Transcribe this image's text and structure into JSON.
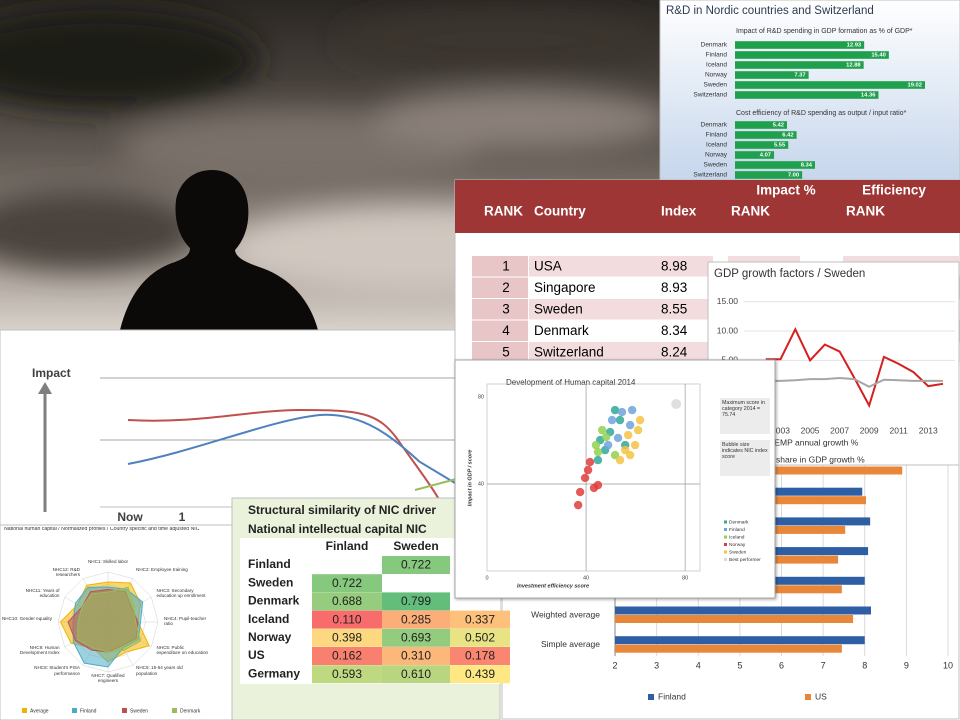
{
  "rd_panel": {
    "title": "R&D in Nordic countries and Switzerland",
    "impact": {
      "subtitle": "Impact of R&D spending in GDP formation as % of GDP*",
      "categories": [
        "Denmark",
        "Finland",
        "Iceland",
        "Norway",
        "Sweden",
        "Switzerland"
      ],
      "values": [
        12.93,
        15.4,
        12.88,
        7.37,
        19.02,
        14.36
      ],
      "value_labels": [
        "12.93",
        "15.40",
        "12.88",
        "7.37",
        "19.02",
        "14.36"
      ],
      "color": "#1fa04c"
    },
    "efficiency": {
      "subtitle": "Cost efficiency of R&D spending as output / input ratio*",
      "categories": [
        "Denmark",
        "Finland",
        "Iceland",
        "Norway",
        "Sweden",
        "Switzerland"
      ],
      "values": [
        5.42,
        6.42,
        5.55,
        4.07,
        8.34,
        7.0
      ],
      "value_labels": [
        "5.42",
        "6.42",
        "5.55",
        "4.07",
        "8.34",
        "7.00"
      ],
      "color": "#1fa04c"
    }
  },
  "impact_chart": {
    "y_label": "Impact",
    "x_labels": [
      "Now",
      "1"
    ]
  },
  "radar": {
    "title": "National human capital / Normalized profiles / Country specific and time adjusted NIC",
    "axes": [
      "NHC1: Skilled labor",
      "NHC2: Employee training",
      "NHC3: Secondary education up enrollment",
      "NHC4: Pupil-teacher ratio",
      "NHC5: Public expenditure on education",
      "NHC6: 15-64 years old population",
      "NHC7: Qualified engineers",
      "NHC8: Student's PISA performance",
      "NHC9: Human Development Index",
      "NHC10: Gender equality",
      "NHC11: Years of education",
      "NHC12: R&D researchers"
    ],
    "series": [
      {
        "name": "Average",
        "color": "#f0b400",
        "values": [
          0.8,
          0.9,
          0.75,
          0.6,
          0.95,
          0.7,
          0.8,
          0.6,
          0.85,
          0.95,
          0.7,
          0.85
        ]
      },
      {
        "name": "Finland",
        "color": "#4bacc6",
        "values": [
          0.7,
          0.75,
          0.8,
          0.65,
          0.7,
          0.6,
          0.9,
          0.95,
          0.8,
          0.7,
          0.75,
          0.8
        ]
      },
      {
        "name": "Sweden",
        "color": "#c0504d",
        "values": [
          0.65,
          0.7,
          0.55,
          0.6,
          0.65,
          0.55,
          0.6,
          0.65,
          0.75,
          0.8,
          0.6,
          0.7
        ]
      },
      {
        "name": "Denmark",
        "color": "#9bbb59",
        "values": [
          0.6,
          0.8,
          0.6,
          0.55,
          0.75,
          0.65,
          0.6,
          0.6,
          0.7,
          0.6,
          0.6,
          0.65
        ]
      }
    ]
  },
  "rank_table": {
    "header_top": [
      "Impact %",
      "Efficiency"
    ],
    "columns": [
      "RANK",
      "Country",
      "Index",
      "RANK",
      "RANK"
    ],
    "rows": [
      [
        1,
        "USA",
        8.98
      ],
      [
        2,
        "Singapore",
        8.93
      ],
      [
        3,
        "Sweden",
        8.55
      ],
      [
        4,
        "Denmark",
        8.34
      ],
      [
        5,
        "Switzerland",
        8.24
      ]
    ]
  },
  "gdp_chart": {
    "title": "GDP growth factors / Sweden",
    "x": [
      2002,
      2003,
      2004,
      2005,
      2006,
      2007,
      2008,
      2009,
      2010,
      2011,
      2012,
      2013,
      2014
    ],
    "xlim": [
      2001,
      2014
    ],
    "xticks": [
      2003,
      2005,
      2007,
      2009,
      2011,
      2013
    ],
    "ylim": [
      -5,
      17
    ],
    "yticks": [
      {
        "value": 5,
        "label": "5.00"
      },
      {
        "value": 10,
        "label": "10.00"
      },
      {
        "value": 15,
        "label": "15.00"
      }
    ],
    "series": [
      {
        "name": "/EMP annual growth %",
        "color": "#d42020",
        "values": [
          5.2,
          5.2,
          10.3,
          5.0,
          7.7,
          6.5,
          2.0,
          -2.7,
          5.6,
          4.4,
          3.0,
          0.6,
          1.0
        ]
      },
      {
        "name": "share in GDP growth %",
        "color": "#a6a6a6",
        "values": [
          1.5,
          1.5,
          1.6,
          1.8,
          1.8,
          2.0,
          1.8,
          0.5,
          1.7,
          1.6,
          1.5,
          1.5,
          1.5
        ]
      }
    ]
  },
  "similarity_table": {
    "title": [
      "Structural similarity of NIC driver",
      "National intellectual capital NIC"
    ],
    "columns": [
      "Finland",
      "Sweden"
    ],
    "rows": [
      {
        "name": "Finland",
        "values": [
          null,
          "0.722",
          null
        ]
      },
      {
        "name": "Sweden",
        "values": [
          "0.722",
          null,
          null
        ]
      },
      {
        "name": "Denmark",
        "values": [
          "0.688",
          "0.799",
          null
        ]
      },
      {
        "name": "Iceland",
        "values": [
          "0.110",
          "0.285",
          "0.337"
        ]
      },
      {
        "name": "Norway",
        "values": [
          "0.398",
          "0.693",
          "0.502"
        ]
      },
      {
        "name": "US",
        "values": [
          "0.162",
          "0.310",
          "0.178"
        ]
      },
      {
        "name": "Germany",
        "values": [
          "0.593",
          "0.610",
          "0.439"
        ]
      }
    ]
  },
  "bar_chart": {
    "categories": [
      null,
      null,
      null,
      null,
      null,
      "Weighted average",
      "Simple average"
    ],
    "xlim": [
      2,
      10
    ],
    "xticks": [
      2,
      3,
      4,
      5,
      6,
      7,
      8,
      9,
      10
    ],
    "series": [
      {
        "name": "Finland",
        "color": "#2e5fa4",
        "values": [
          null,
          7.94,
          8.13,
          8.08,
          8.0,
          8.15,
          8.0
        ]
      },
      {
        "name": "US",
        "color": "#e8873a",
        "values": [
          8.9,
          8.03,
          7.53,
          7.36,
          7.45,
          7.72,
          7.45
        ]
      }
    ]
  },
  "bubble_chart": {
    "title": "Development of  Human capital 2014",
    "x_label": "Investment efficiency score",
    "y_label": "Impact in GDP / score",
    "xlim": [
      0,
      86
    ],
    "ylim": [
      0,
      86
    ],
    "xticks": [
      0,
      40,
      80
    ],
    "yticks": [
      40,
      80
    ],
    "annotations": [
      "Maximum score in category 2014 = 75.74",
      "Bubble size indicates NIC index score"
    ],
    "series": [
      {
        "name": "Denmark",
        "color": "#30a89a",
        "x": [
          45.7,
          49.7,
          53.7,
          47.7,
          55.8,
          51.7,
          44.8
        ],
        "y": [
          60.2,
          63.9,
          69.4,
          55.6,
          57.9,
          74.0,
          51.0
        ]
      },
      {
        "name": "Finland",
        "color": "#6ea3dc",
        "x": [
          50.5,
          54.5,
          57.8,
          48.9,
          52.9,
          58.6
        ],
        "y": [
          69.4,
          73.1,
          67.1,
          57.9,
          61.2,
          74.0
        ]
      },
      {
        "name": "Iceland",
        "color": "#92d050",
        "x": [
          46.5,
          44.0,
          51.7,
          48.1,
          44.8
        ],
        "y": [
          64.8,
          57.9,
          53.3,
          61.6,
          54.7
        ]
      },
      {
        "name": "Norway",
        "color": "#e03c3c",
        "x": [
          40.8,
          41.6,
          39.6,
          43.2,
          37.6,
          36.8,
          44.8
        ],
        "y": [
          46.4,
          50.1,
          42.8,
          38.2,
          36.3,
          30.3,
          39.5
        ]
      },
      {
        "name": "Sweden",
        "color": "#f5c342",
        "x": [
          57.0,
          61.0,
          55.8,
          59.8,
          61.8,
          57.8,
          53.7
        ],
        "y": [
          62.5,
          64.8,
          55.6,
          57.9,
          69.4,
          53.3,
          51.0
        ]
      },
      {
        "name": "Best performer",
        "color": "#d9d9d9",
        "x": [
          76.4
        ],
        "y": [
          76.8
        ]
      }
    ]
  }
}
